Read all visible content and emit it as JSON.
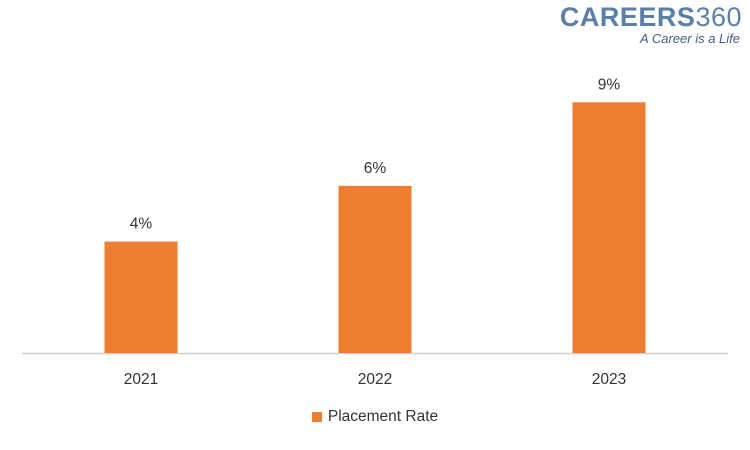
{
  "logo": {
    "brand_word": "CAREERS",
    "brand_number": "360",
    "tagline": "A Career is a Life"
  },
  "colors": {
    "bar": "#ED7D31",
    "axis": "#d0d0d0",
    "label": "#333333"
  },
  "chart_data": {
    "type": "bar",
    "categories": [
      "2021",
      "2022",
      "2023"
    ],
    "series": [
      {
        "name": "Placement Rate",
        "values": [
          4,
          6,
          9
        ],
        "labels": [
          "4%",
          "6%",
          "9%"
        ]
      }
    ],
    "title": "",
    "xlabel": "",
    "ylabel": "",
    "ylim": [
      0,
      9.8
    ],
    "grid": false,
    "legend_position": "bottom"
  }
}
